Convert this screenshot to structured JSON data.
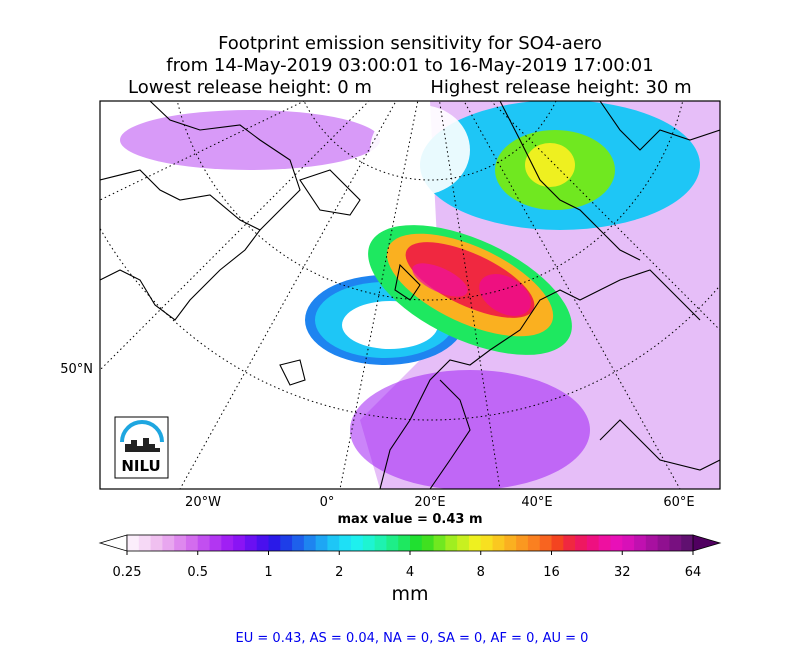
{
  "header": {
    "title": "Footprint emission sensitivity for SO4-aero",
    "period": "from 14-May-2019 03:00:01 to 16-May-2019 17:00:01",
    "lowest": "Lowest release height: 0 m",
    "highest": "Highest release height: 30 m"
  },
  "map": {
    "lat_labels": [
      "50°N"
    ],
    "lon_labels": [
      "20°W",
      "0°",
      "20°E",
      "40°E",
      "60°E"
    ],
    "max_value": "max value = 0.43 m",
    "logo": "NILU"
  },
  "colorbar": {
    "range": [
      0.25,
      64
    ],
    "log": true,
    "ticks": [
      0.25,
      0.5,
      1,
      2,
      4,
      8,
      16,
      32,
      64
    ],
    "label": "mm",
    "under": "#ffffff",
    "over": "#500060",
    "colors": [
      "#fbeefb",
      "#f6d9f6",
      "#f0c0f0",
      "#e8a6ef",
      "#de88ee",
      "#d36cee",
      "#c24ff0",
      "#b236f2",
      "#a01ff4",
      "#8a14f4",
      "#6a10f2",
      "#4a10ee",
      "#2a1ae8",
      "#1e3ee8",
      "#1e60ec",
      "#1e84f0",
      "#1ea6f4",
      "#1ec6f6",
      "#1ee0f6",
      "#1ef0ee",
      "#1ef4d2",
      "#1ef2b0",
      "#1eee88",
      "#1ee860",
      "#20e030",
      "#40e020",
      "#70e820",
      "#a0ee20",
      "#c8f020",
      "#eef020",
      "#f8e020",
      "#fac820",
      "#fab020",
      "#fa9820",
      "#fa8020",
      "#f86420",
      "#f44420",
      "#f02840",
      "#ee1860",
      "#ee1080",
      "#ee10a0",
      "#e810b8",
      "#d810b8",
      "#c010b0",
      "#a810a0",
      "#901090",
      "#781080",
      "#601070"
    ]
  },
  "footer": "EU = 0.43,  AS = 0.04,  NA = 0,  SA = 0,  AF = 0,  AU = 0"
}
